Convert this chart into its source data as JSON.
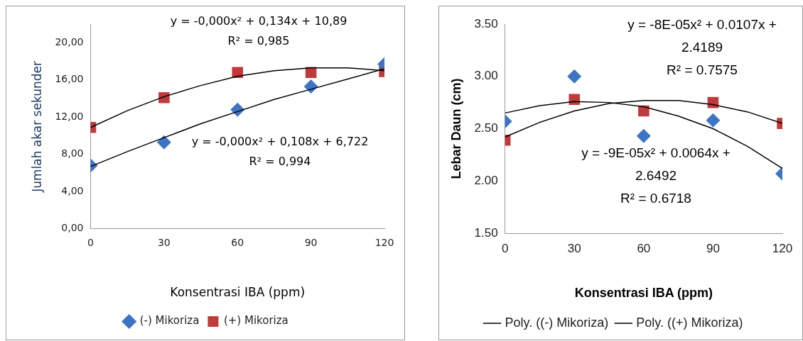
{
  "chart_data": [
    {
      "type": "scatter",
      "xlabel": "Konsentrasi IBA (ppm)",
      "ylabel": "Jumlah akar sekunder",
      "x": [
        0,
        30,
        60,
        90,
        120
      ],
      "series": [
        {
          "name": "(-) Mikoriza",
          "color": "#3d75c4",
          "marker": "diamond",
          "values": [
            6.8,
            9.3,
            12.8,
            15.3,
            17.7
          ]
        },
        {
          "name": "(+) Mikoriza",
          "color": "#c0393b",
          "marker": "square",
          "values": [
            10.9,
            14.1,
            16.8,
            16.8,
            16.9
          ]
        },
        {
          "type": "line",
          "color": "#000000",
          "marker": "none",
          "x": [
            0,
            15,
            30,
            45,
            60,
            75,
            90,
            105,
            120
          ],
          "values": [
            10.9,
            12.7,
            14.2,
            15.4,
            16.4,
            17.0,
            17.3,
            17.3,
            17.0
          ]
        },
        {
          "type": "line",
          "color": "#000000",
          "marker": "none",
          "x": [
            0,
            15,
            30,
            45,
            60,
            75,
            90,
            105,
            120
          ],
          "values": [
            6.7,
            8.3,
            9.8,
            11.3,
            12.6,
            13.9,
            15.0,
            16.1,
            17.2
          ]
        }
      ],
      "xlim": [
        0,
        120
      ],
      "xticks": [
        0,
        30,
        60,
        90,
        120
      ],
      "ylim": [
        0,
        22
      ],
      "yticks": [
        {
          "value": 0,
          "label": "0,00"
        },
        {
          "value": 4,
          "label": "4,00"
        },
        {
          "value": 8,
          "label": "8,00"
        },
        {
          "value": 12,
          "label": "12,00"
        },
        {
          "value": 16,
          "label": "16,00"
        },
        {
          "value": 20,
          "label": "20,00"
        }
      ],
      "annotations": [
        "y = -0,000x² + 0,134x + 10,89\nR² = 0,985",
        "y = -0,000x² + 0,108x + 6,722\nR² = 0,994"
      ],
      "grid": false,
      "legend": "bottom"
    },
    {
      "type": "scatter",
      "xlabel": "Konsentrasi IBA (ppm)",
      "ylabel": "Lebar Daun (cm)",
      "x": [
        0,
        30,
        60,
        90,
        120
      ],
      "series": [
        {
          "color": "#3d75c4",
          "marker": "diamond",
          "values": [
            2.57,
            3.0,
            2.43,
            2.58,
            2.07
          ]
        },
        {
          "color": "#c0393b",
          "marker": "square",
          "values": [
            2.39,
            2.78,
            2.67,
            2.75,
            2.55
          ]
        },
        {
          "name": "Poly. ((-) Mikoriza)",
          "type": "line",
          "color": "#000000",
          "marker": "none",
          "x": [
            0,
            15,
            30,
            45,
            60,
            75,
            90,
            105,
            120
          ],
          "values": [
            2.65,
            2.72,
            2.76,
            2.75,
            2.71,
            2.62,
            2.5,
            2.33,
            2.12
          ]
        },
        {
          "name": "Poly. ((+) Mikoriza)",
          "type": "line",
          "color": "#000000",
          "marker": "none",
          "x": [
            0,
            15,
            30,
            45,
            60,
            75,
            90,
            105,
            120
          ],
          "values": [
            2.42,
            2.56,
            2.67,
            2.74,
            2.77,
            2.77,
            2.73,
            2.66,
            2.55
          ]
        }
      ],
      "xlim": [
        0,
        120
      ],
      "xticks": [
        0,
        30,
        60,
        90,
        120
      ],
      "ylim": [
        1.5,
        3.5
      ],
      "yticks": [
        {
          "value": 1.5,
          "label": "1.50"
        },
        {
          "value": 2,
          "label": "2.00"
        },
        {
          "value": 2.5,
          "label": "2.50"
        },
        {
          "value": 3,
          "label": "3.00"
        },
        {
          "value": 3.5,
          "label": "3.50"
        }
      ],
      "annotations": [
        "y = -8E-05x² + 0.0107x +\n2.4189\nR² = 0.7575",
        "y = -9E-05x² + 0.0064x +\n2.6492\nR² = 0.6718"
      ],
      "grid": false,
      "legend": "bottom"
    }
  ]
}
